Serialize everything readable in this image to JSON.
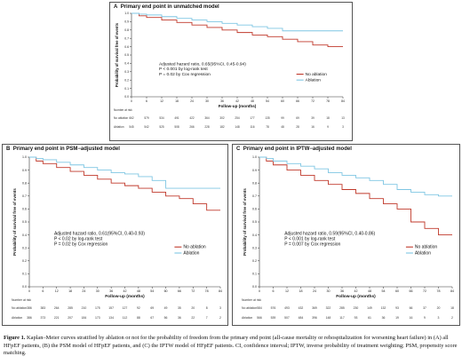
{
  "figure": {
    "caption_label": "Figure 1.",
    "caption_text": " Kaplan–Meier curves stratified by ablation or not for the probability of freedom from the primary end point (all-cause mortality or rehospitalization for worsening heart failure) in (A) all HFpEF patients, (B) the PSM model of HFpEF patients, and (C) the IPTW model of HFpEF patients. CI, confidence interval; IPTW, inverse probability of treatment weighting; PSM, propensity score matching."
  },
  "colors": {
    "no_ablation": "#c0392b",
    "ablation": "#7fc6e3",
    "axis": "#333333"
  },
  "chart_data": [
    {
      "type": "line",
      "panel_letter": "A",
      "title": "Primary end point in unmatched model",
      "xlabel": "Follow-up (months)",
      "ylabel": "Probability of survival free of events",
      "xlim": [
        0,
        84
      ],
      "ylim": [
        0.0,
        1.0
      ],
      "xticks": [
        0,
        6,
        12,
        18,
        24,
        30,
        36,
        42,
        48,
        54,
        60,
        66,
        72,
        78,
        84
      ],
      "yticks": [
        0.0,
        0.1,
        0.2,
        0.3,
        0.4,
        0.5,
        0.6,
        0.7,
        0.8,
        0.9,
        1.0
      ],
      "annotation": [
        "Adjusted hazard ratio, 0.65(95%CI, 0.45-0.94)",
        "P < 0.001 by log-rank test",
        "P = 0.02 by Cox regression"
      ],
      "legend": [
        "No ablation",
        "Ablation"
      ],
      "legend_position": "right-middle",
      "series": [
        {
          "name": "No ablation",
          "color": "#c0392b",
          "x": [
            0,
            3,
            6,
            12,
            18,
            24,
            30,
            36,
            42,
            48,
            54,
            60,
            66,
            72,
            78,
            84
          ],
          "y": [
            1.0,
            0.97,
            0.95,
            0.92,
            0.89,
            0.86,
            0.83,
            0.8,
            0.77,
            0.74,
            0.72,
            0.69,
            0.66,
            0.62,
            0.6,
            0.6
          ]
        },
        {
          "name": "Ablation",
          "color": "#7fc6e3",
          "x": [
            0,
            3,
            6,
            12,
            18,
            24,
            30,
            36,
            42,
            48,
            54,
            60,
            66,
            72,
            78,
            84
          ],
          "y": [
            1.0,
            0.99,
            0.98,
            0.96,
            0.94,
            0.92,
            0.9,
            0.88,
            0.86,
            0.84,
            0.82,
            0.79,
            0.79,
            0.79,
            0.79,
            0.79
          ]
        }
      ],
      "risk_table": {
        "title": "Number at risk",
        "rows": [
          {
            "label": "No ablation",
            "values": [
              "662",
              "579",
              "534",
              "491",
              "422",
              "364",
              "302",
              "254",
              "177",
              "135",
              "99",
              "69",
              "39",
              "18",
              "13"
            ]
          },
          {
            "label": "Ablation",
            "values": [
              "545",
              "542",
              "525",
              "508",
              "266",
              "228",
              "182",
              "148",
              "116",
              "78",
              "48",
              "28",
              "16",
              "9",
              "3"
            ]
          }
        ]
      }
    },
    {
      "type": "line",
      "panel_letter": "B",
      "title": "Primary end point in PSM−adjusted model",
      "xlabel": "Follow-up (months)",
      "ylabel": "Probability of survival free of events",
      "xlim": [
        0,
        84
      ],
      "ylim": [
        0.0,
        1.0
      ],
      "xticks": [
        0,
        6,
        12,
        18,
        24,
        30,
        36,
        42,
        48,
        54,
        60,
        66,
        72,
        78,
        84
      ],
      "yticks": [
        0.0,
        0.1,
        0.2,
        0.3,
        0.4,
        0.5,
        0.6,
        0.7,
        0.8,
        0.9,
        1.0
      ],
      "annotation": [
        "Adjusted hazard ratio, 0.61(95%CI, 0.40-0.93)",
        "P < 0.02 by log-rank test",
        "P = 0.02 by Cox regression"
      ],
      "legend": [
        "No ablation",
        "Ablation"
      ],
      "legend_position": "right-middle",
      "series": [
        {
          "name": "No ablation",
          "color": "#c0392b",
          "x": [
            0,
            3,
            6,
            12,
            18,
            24,
            30,
            36,
            42,
            48,
            54,
            60,
            66,
            72,
            78,
            84
          ],
          "y": [
            1.0,
            0.97,
            0.95,
            0.92,
            0.89,
            0.86,
            0.83,
            0.8,
            0.78,
            0.76,
            0.73,
            0.7,
            0.68,
            0.64,
            0.59,
            0.59
          ]
        },
        {
          "name": "Ablation",
          "color": "#7fc6e3",
          "x": [
            0,
            3,
            6,
            12,
            18,
            24,
            30,
            36,
            42,
            48,
            54,
            60,
            66,
            72,
            78,
            84
          ],
          "y": [
            1.0,
            0.99,
            0.98,
            0.96,
            0.94,
            0.92,
            0.9,
            0.88,
            0.87,
            0.85,
            0.82,
            0.76,
            0.76,
            0.76,
            0.76,
            0.76
          ]
        }
      ],
      "risk_table": {
        "title": "Number at risk",
        "rows": [
          {
            "label": "No ablation",
            "values": [
              "386",
              "383",
              "264",
              "285",
              "210",
              "175",
              "157",
              "127",
              "92",
              "69",
              "49",
              "35",
              "20",
              "8",
              "3"
            ]
          },
          {
            "label": "Ablation",
            "values": [
              "386",
              "373",
              "221",
              "207",
              "184",
              "173",
              "134",
              "112",
              "88",
              "67",
              "56",
              "36",
              "22",
              "7",
              "2"
            ]
          }
        ]
      }
    },
    {
      "type": "line",
      "panel_letter": "C",
      "title": "Primary end point in IPTW−adjusted model",
      "xlabel": "Follow-up (months)",
      "ylabel": "Probability of survival free of events",
      "xlim": [
        0,
        84
      ],
      "ylim": [
        0.0,
        1.0
      ],
      "xticks": [
        0,
        6,
        12,
        18,
        24,
        30,
        36,
        42,
        48,
        54,
        60,
        66,
        72,
        78,
        84
      ],
      "yticks": [
        0.0,
        0.1,
        0.2,
        0.3,
        0.4,
        0.5,
        0.6,
        0.7,
        0.8,
        0.9,
        1.0
      ],
      "annotation": [
        "Adjusted hazard ratio, 0.59(95%CI, 0.40-0.86)",
        "P < 0.001 by log-rank test",
        "P = 0.007 by Cox regression"
      ],
      "legend": [
        "No ablation",
        "Ablation"
      ],
      "legend_position": "right-middle",
      "series": [
        {
          "name": "No ablation",
          "color": "#c0392b",
          "x": [
            0,
            3,
            6,
            12,
            18,
            24,
            30,
            36,
            42,
            48,
            54,
            60,
            66,
            72,
            78,
            84
          ],
          "y": [
            1.0,
            0.97,
            0.94,
            0.9,
            0.86,
            0.82,
            0.79,
            0.75,
            0.72,
            0.68,
            0.64,
            0.6,
            0.5,
            0.45,
            0.4,
            0.4
          ]
        },
        {
          "name": "Ablation",
          "color": "#7fc6e3",
          "x": [
            0,
            3,
            6,
            12,
            18,
            24,
            30,
            36,
            42,
            48,
            54,
            60,
            66,
            72,
            78,
            84
          ],
          "y": [
            1.0,
            0.99,
            0.97,
            0.95,
            0.93,
            0.91,
            0.88,
            0.86,
            0.84,
            0.82,
            0.79,
            0.75,
            0.73,
            0.71,
            0.7,
            0.7
          ]
        }
      ],
      "risk_table": {
        "title": "Number at risk",
        "rows": [
          {
            "label": "No ablation",
            "values": [
              "584",
              "576",
              "493",
              "432",
              "369",
              "322",
              "285",
              "230",
              "149",
              "132",
              "93",
              "66",
              "37",
              "20",
              "18"
            ]
          },
          {
            "label": "Ablation",
            "values": [
              "566",
              "539",
              "507",
              "484",
              "396",
              "148",
              "117",
              "93",
              "61",
              "36",
              "19",
              "16",
              "9",
              "3",
              "2"
            ]
          }
        ]
      }
    }
  ]
}
